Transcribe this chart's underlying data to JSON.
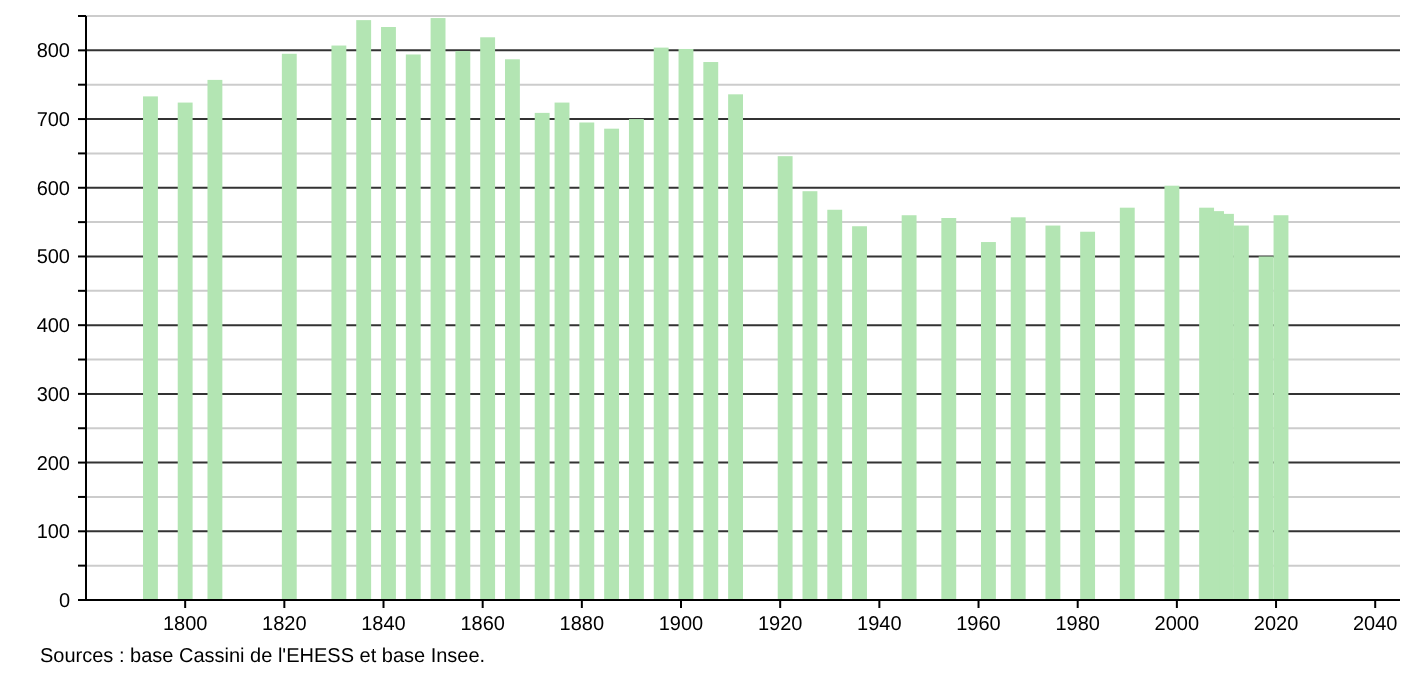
{
  "chart_data": {
    "type": "bar",
    "color": "#b3e5b3",
    "x": [
      1793,
      1800,
      1806,
      1821,
      1831,
      1836,
      1841,
      1846,
      1851,
      1856,
      1861,
      1866,
      1872,
      1876,
      1881,
      1886,
      1891,
      1896,
      1901,
      1906,
      1911,
      1921,
      1926,
      1931,
      1936,
      1946,
      1954,
      1962,
      1968,
      1975,
      1982,
      1990,
      1999,
      2006,
      2008,
      2010,
      2013,
      2018,
      2021
    ],
    "values": [
      733,
      724,
      757,
      795,
      807,
      844,
      834,
      794,
      847,
      799,
      819,
      787,
      709,
      724,
      695,
      686,
      700,
      804,
      802,
      783,
      736,
      646,
      595,
      568,
      544,
      560,
      556,
      521,
      557,
      545,
      536,
      571,
      603,
      571,
      566,
      562,
      545,
      500,
      560
    ],
    "xlim": [
      1780,
      2045
    ],
    "xticks": [
      1800,
      1820,
      1840,
      1860,
      1880,
      1900,
      1920,
      1940,
      1960,
      1980,
      2000,
      2020,
      2040
    ],
    "ylim": [
      0,
      850
    ],
    "yticks": [
      0,
      {
        "value": 50,
        "label": null
      },
      100,
      {
        "value": 150,
        "label": null
      },
      200,
      {
        "value": 250,
        "label": null
      },
      300,
      {
        "value": 350,
        "label": null
      },
      400,
      {
        "value": 450,
        "label": null
      },
      500,
      {
        "value": 550,
        "label": null
      },
      600,
      {
        "value": 650,
        "label": null
      },
      700,
      {
        "value": 750,
        "label": null
      },
      800,
      {
        "value": 850,
        "label": null
      }
    ],
    "grid": true,
    "annotations": [
      "Sources : base Cassini de l'EHESS et base Insee."
    ]
  }
}
